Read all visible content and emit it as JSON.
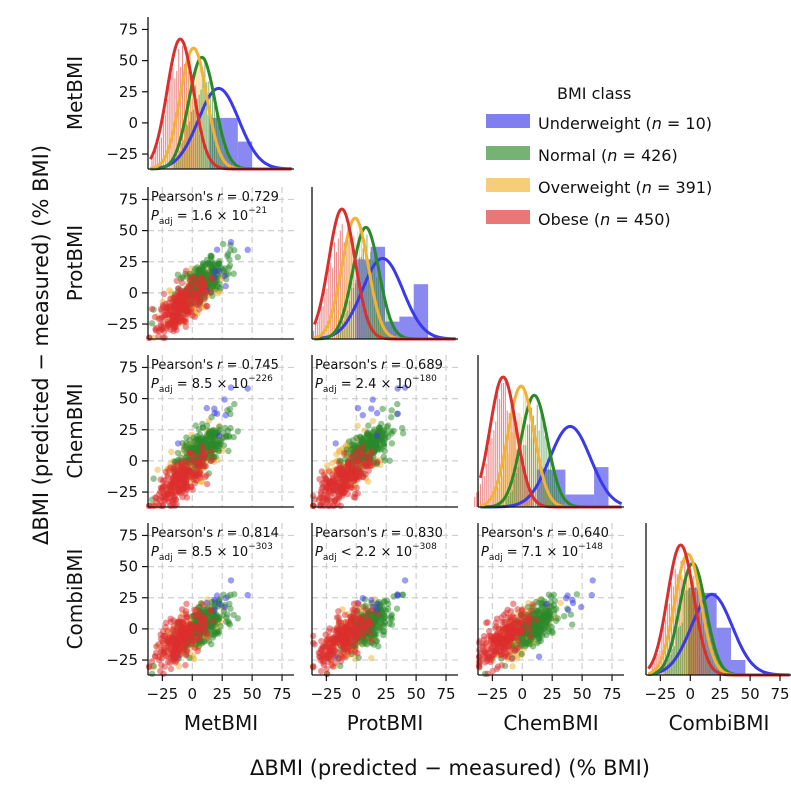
{
  "chart_data": {
    "type": "pairplot",
    "title": "",
    "variables": [
      "MetBMI",
      "ProtBMI",
      "ChemBMI",
      "CombiBMI"
    ],
    "axis_range": [
      -37,
      85
    ],
    "ticks": [
      -25,
      0,
      25,
      50,
      75
    ],
    "tick_labels": [
      "−25",
      "0",
      "25",
      "50",
      "75"
    ],
    "xlabel": "ΔBMI (predicted − measured) (% BMI)",
    "ylabel": "ΔBMI (predicted − measured) (% BMI)",
    "legend": {
      "title": "BMI class",
      "position": "top-right",
      "entries": [
        {
          "name": "Underweight",
          "n_label": "n",
          "n_rest": " = 10)",
          "color": "#3a3ae8"
        },
        {
          "name": "Normal",
          "n_label": "n",
          "n_rest": " = 426)",
          "color": "#2a8a2a"
        },
        {
          "name": "Overweight",
          "n_label": "n",
          "n_rest": " = 391)",
          "color": "#f2b233"
        },
        {
          "name": "Obese",
          "n_label": "n",
          "n_rest": " = 450)",
          "color": "#dd2e2e"
        }
      ]
    },
    "class_colors": {
      "Underweight": "#3a3ae8",
      "Normal": "#2a8a2a",
      "Overweight": "#f2b233",
      "Obese": "#dd2e2e"
    },
    "class_stats": {
      "Underweight": {
        "n": 10,
        "means": [
          22,
          22,
          40,
          18
        ],
        "sd": 17
      },
      "Normal": {
        "n": 426,
        "means": [
          8,
          8,
          10,
          2
        ],
        "sd": 11
      },
      "Overweight": {
        "n": 391,
        "means": [
          1,
          -1,
          -1,
          -2
        ],
        "sd": 11
      },
      "Obese": {
        "n": 450,
        "means": [
          -10,
          -12,
          -16,
          -8
        ],
        "sd": 11
      }
    },
    "correlations": [
      {
        "x": "MetBMI",
        "y": "ProtBMI",
        "r_prefix": "Pearson's ",
        "r_symbol": "r",
        "r_value": " = 0.729",
        "p_symbol": "P",
        "p_sub": "adj",
        "p_rel": " = ",
        "p_mantissa": "1.6 × 10",
        "p_exp": "−21"
      },
      {
        "x": "MetBMI",
        "y": "ChemBMI",
        "r_prefix": "Pearson's ",
        "r_symbol": "r",
        "r_value": " = 0.745",
        "p_symbol": "P",
        "p_sub": "adj",
        "p_rel": " = ",
        "p_mantissa": "8.5 × 10",
        "p_exp": "−226"
      },
      {
        "x": "ProtBMI",
        "y": "ChemBMI",
        "r_prefix": "Pearson's ",
        "r_symbol": "r",
        "r_value": " = 0.689",
        "p_symbol": "P",
        "p_sub": "adj",
        "p_rel": " = ",
        "p_mantissa": "2.4 × 10",
        "p_exp": "−180"
      },
      {
        "x": "MetBMI",
        "y": "CombiBMI",
        "r_prefix": "Pearson's ",
        "r_symbol": "r",
        "r_value": " = 0.814",
        "p_symbol": "P",
        "p_sub": "adj",
        "p_rel": " = ",
        "p_mantissa": "8.5 × 10",
        "p_exp": "−303"
      },
      {
        "x": "ProtBMI",
        "y": "CombiBMI",
        "r_prefix": "Pearson's ",
        "r_symbol": "r",
        "r_value": " = 0.830",
        "p_symbol": "P",
        "p_sub": "adj",
        "p_rel": " < ",
        "p_mantissa": "2.2 × 10",
        "p_exp": "−308"
      },
      {
        "x": "ChemBMI",
        "y": "CombiBMI",
        "r_prefix": "Pearson's ",
        "r_symbol": "r",
        "r_value": " = 0.640",
        "p_symbol": "P",
        "p_sub": "adj",
        "p_rel": " = ",
        "p_mantissa": "7.1 × 10",
        "p_exp": "−148"
      }
    ],
    "histograms": [
      {
        "variable": "MetBMI",
        "bin_edges": [
          -10,
          2,
          14,
          26,
          38,
          50
        ],
        "underweight_heights": [
          0,
          0,
          39,
          39,
          20
        ]
      },
      {
        "variable": "ProtBMI",
        "bin_edges": [
          0,
          12,
          24,
          36,
          48,
          60
        ],
        "underweight_heights": [
          62,
          72,
          12,
          16,
          42
        ]
      },
      {
        "variable": "ChemBMI",
        "bin_edges": [
          12,
          24,
          36,
          48,
          60,
          72
        ],
        "underweight_heights": [
          28,
          28,
          8,
          8,
          30
        ]
      },
      {
        "variable": "CombiBMI",
        "bin_edges": [
          -2,
          10,
          22,
          34,
          46,
          58
        ],
        "underweight_heights": [
          68,
          64,
          36,
          10,
          0
        ]
      }
    ],
    "grid": true
  }
}
